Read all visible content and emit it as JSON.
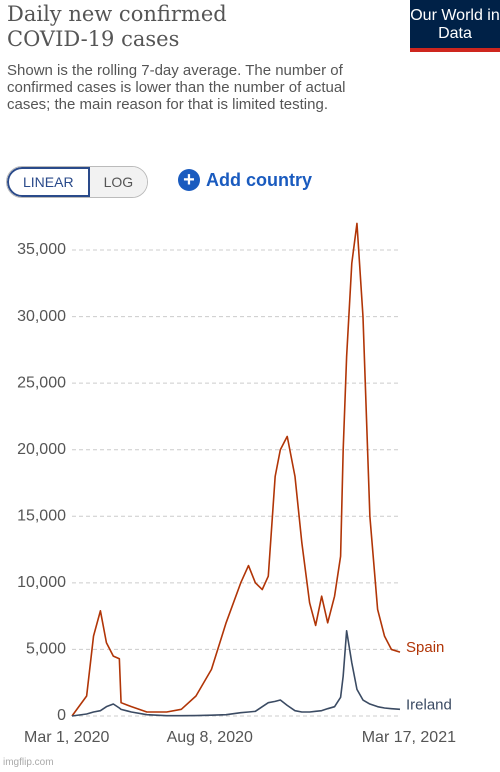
{
  "chart_data": {
    "type": "line",
    "title": "Daily new confirmed COVID-19 cases",
    "subtitle": "Shown is the rolling 7-day average. The number of confirmed cases is lower than the number of actual cases; the main reason for that is limited testing.",
    "x": [
      "2020-03-01",
      "2020-03-18",
      "2020-03-26",
      "2020-04-03",
      "2020-04-10",
      "2020-04-18",
      "2020-04-25",
      "2020-04-27",
      "2020-05-09",
      "2020-05-27",
      "2020-06-19",
      "2020-07-06",
      "2020-07-23",
      "2020-08-10",
      "2020-08-27",
      "2020-09-13",
      "2020-09-22",
      "2020-09-30",
      "2020-10-08",
      "2020-10-15",
      "2020-10-23",
      "2020-10-29",
      "2020-11-06",
      "2020-11-15",
      "2020-11-23",
      "2020-12-02",
      "2020-12-09",
      "2020-12-16",
      "2020-12-23",
      "2020-12-31",
      "2021-01-07",
      "2021-01-10",
      "2021-01-14",
      "2021-01-20",
      "2021-01-26",
      "2021-02-02",
      "2021-02-10",
      "2021-02-19",
      "2021-02-27",
      "2021-03-07",
      "2021-03-17"
    ],
    "series": [
      {
        "name": "Spain",
        "color": "#b13507",
        "values": [
          0,
          1500,
          6000,
          7900,
          5500,
          4500,
          4300,
          1000,
          700,
          300,
          300,
          500,
          1500,
          3500,
          7000,
          10000,
          11300,
          10000,
          9500,
          10500,
          18000,
          20000,
          21000,
          18000,
          13000,
          8500,
          6800,
          9000,
          7000,
          9000,
          12000,
          20000,
          27000,
          34000,
          37000,
          30000,
          15000,
          8000,
          6000,
          5000,
          4800
        ]
      },
      {
        "name": "Ireland",
        "color": "#3b4b63",
        "values": [
          0,
          150,
          300,
          400,
          700,
          900,
          600,
          500,
          300,
          100,
          20,
          20,
          30,
          60,
          100,
          250,
          300,
          350,
          700,
          1000,
          1100,
          1200,
          800,
          400,
          300,
          300,
          350,
          400,
          550,
          700,
          1400,
          3000,
          6400,
          4000,
          2000,
          1200,
          900,
          700,
          600,
          550,
          500
        ]
      }
    ],
    "xlim": [
      "2020-03-01",
      "2021-03-17"
    ],
    "xticks": [
      {
        "value": "2020-03-01",
        "label": "Mar 1, 2020"
      },
      {
        "value": "2020-08-08",
        "label": "Aug 8, 2020"
      },
      {
        "value": "2021-03-17",
        "label": "Mar 17, 2021"
      }
    ],
    "ylim": [
      0,
      35000
    ],
    "yticks": [
      0,
      {
        "value": 5000,
        "label": "5,000"
      },
      {
        "value": 10000,
        "label": "10,000"
      },
      {
        "value": 15000,
        "label": "15,000"
      },
      {
        "value": 20000,
        "label": "20,000"
      },
      {
        "value": 25000,
        "label": "25,000"
      },
      {
        "value": 30000,
        "label": "30,000"
      },
      {
        "value": 35000,
        "label": "35,000"
      }
    ],
    "grid": true
  },
  "controls": {
    "linear": "LINEAR",
    "log": "LOG",
    "add_country": "Add country"
  },
  "logo": "Our World in Data",
  "watermark": "imgflip.com"
}
